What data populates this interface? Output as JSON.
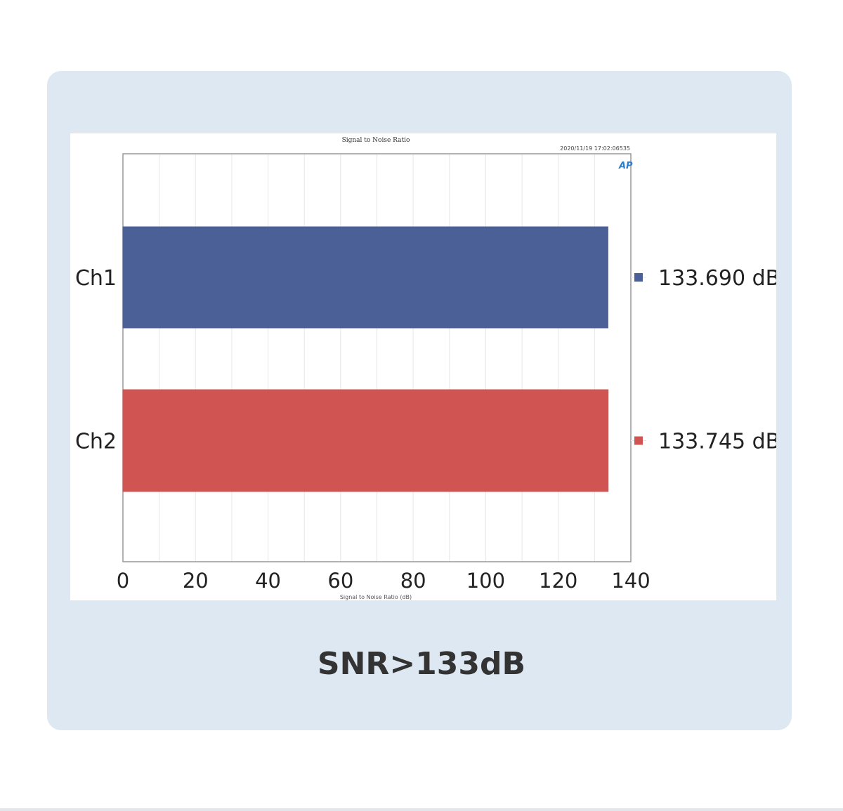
{
  "chart_data": {
    "type": "bar",
    "orientation": "horizontal",
    "title": "Signal to Noise Ratio",
    "timestamp": "2020/11/19 17:02:06535",
    "xlabel": "Signal to Noise Ratio (dB)",
    "ylabel": "",
    "categories": [
      "Ch1",
      "Ch2"
    ],
    "values": [
      133.69,
      133.745
    ],
    "value_labels": [
      "133.690 dB",
      "133.745 dB"
    ],
    "colors": [
      "#4a6097",
      "#d05552"
    ],
    "xlim": [
      0,
      140
    ],
    "xticks": [
      "0",
      "20",
      "40",
      "60",
      "80",
      "100",
      "120",
      "140"
    ],
    "grid": true,
    "legend": "right"
  },
  "caption": "SNR>133dB"
}
